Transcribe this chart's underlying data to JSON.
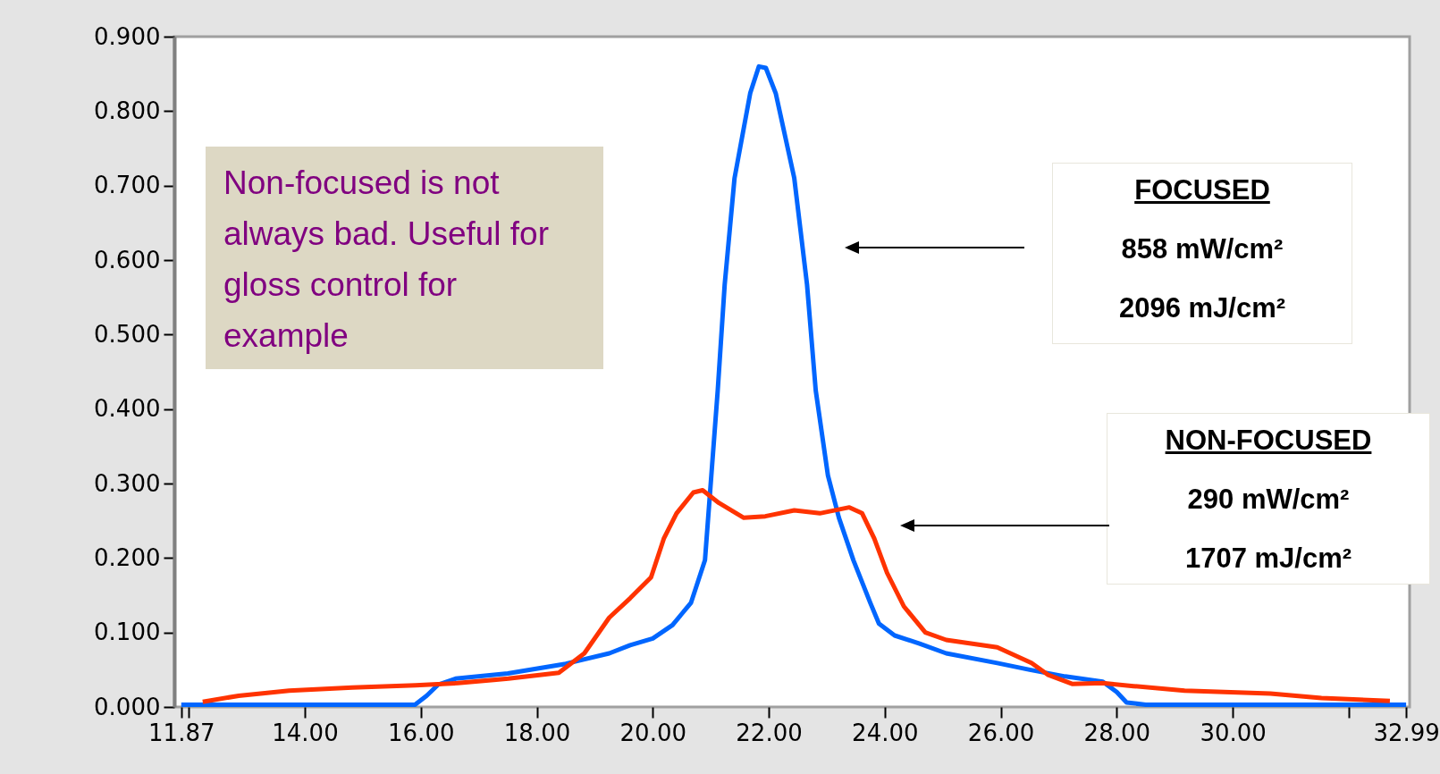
{
  "chart_data": {
    "type": "line",
    "xlim": [
      11.75,
      33.05
    ],
    "xticks": [
      {
        "value": 11.87,
        "label": "11.87"
      },
      {
        "value": 12,
        "label": null
      },
      {
        "value": 14,
        "label": "14.00"
      },
      {
        "value": 16,
        "label": "16.00"
      },
      {
        "value": 18,
        "label": "18.00"
      },
      {
        "value": 20,
        "label": "20.00"
      },
      {
        "value": 22,
        "label": "22.00"
      },
      {
        "value": 24,
        "label": "24.00"
      },
      {
        "value": 26,
        "label": "26.00"
      },
      {
        "value": 28,
        "label": "28.00"
      },
      {
        "value": 30,
        "label": "30.00"
      },
      {
        "value": 32,
        "label": null
      },
      {
        "value": 32.99,
        "label": "32.99"
      }
    ],
    "ylim": [
      0,
      0.9
    ],
    "yticks": [
      {
        "value": 0,
        "label": "0.000"
      },
      {
        "value": 0.1,
        "label": "0.100"
      },
      {
        "value": 0.2,
        "label": "0.200"
      },
      {
        "value": 0.3,
        "label": "0.300"
      },
      {
        "value": 0.4,
        "label": "0.400"
      },
      {
        "value": 0.5,
        "label": "0.500"
      },
      {
        "value": 0.6,
        "label": "0.600"
      },
      {
        "value": 0.7,
        "label": "0.700"
      },
      {
        "value": 0.8,
        "label": "0.800"
      },
      {
        "value": 0.9,
        "label": "0.900"
      }
    ],
    "grid": false,
    "line_style": "solid",
    "series": [
      {
        "color": "#0066ff",
        "x": [
          11.87,
          15.9,
          16.1,
          16.3,
          16.6,
          17.5,
          18.5,
          19.25,
          19.61,
          20.0,
          20.34,
          20.66,
          20.9,
          21.01,
          21.12,
          21.24,
          21.41,
          21.68,
          21.83,
          21.95,
          22.12,
          22.44,
          22.66,
          22.81,
          23.02,
          23.21,
          23.46,
          23.75,
          23.9,
          24.17,
          24.6,
          25.06,
          25.94,
          26.5,
          27.11,
          27.76,
          28.0,
          28.17,
          28.5,
          32.99
        ],
        "values": [
          0.003,
          0.003,
          0.015,
          0.03,
          0.038,
          0.045,
          0.058,
          0.072,
          0.083,
          0.092,
          0.11,
          0.14,
          0.197,
          0.311,
          0.425,
          0.567,
          0.71,
          0.824,
          0.86,
          0.858,
          0.824,
          0.71,
          0.567,
          0.425,
          0.311,
          0.254,
          0.197,
          0.14,
          0.112,
          0.096,
          0.085,
          0.072,
          0.059,
          0.05,
          0.041,
          0.034,
          0.02,
          0.006,
          0.003,
          0.003
        ]
      },
      {
        "color": "#ff3300",
        "x": [
          12.24,
          12.86,
          13.73,
          14.82,
          15.91,
          16.64,
          17.51,
          18.38,
          18.82,
          19.25,
          19.61,
          19.97,
          20.19,
          20.41,
          20.7,
          20.86,
          21.14,
          21.57,
          21.94,
          22.44,
          22.88,
          23.39,
          23.61,
          23.82,
          24.04,
          24.33,
          24.7,
          25.06,
          25.94,
          26.53,
          26.82,
          27.23,
          27.76,
          28.29,
          29.17,
          30.65,
          31.53,
          32.71
        ],
        "values": [
          0.007,
          0.015,
          0.022,
          0.026,
          0.029,
          0.032,
          0.038,
          0.046,
          0.072,
          0.12,
          0.146,
          0.174,
          0.226,
          0.26,
          0.288,
          0.291,
          0.274,
          0.254,
          0.256,
          0.264,
          0.26,
          0.268,
          0.26,
          0.226,
          0.18,
          0.135,
          0.1,
          0.09,
          0.08,
          0.059,
          0.043,
          0.031,
          0.032,
          0.028,
          0.022,
          0.018,
          0.012,
          0.008
        ]
      }
    ],
    "annotations": [
      "Non-focused is not always bad. Useful for gloss control for example",
      "FOCUSED",
      "858 mW/cm²",
      "2096 mJ/cm²",
      "NON-FOCUSED",
      "290 mW/cm²",
      "1707 mJ/cm²"
    ]
  }
}
